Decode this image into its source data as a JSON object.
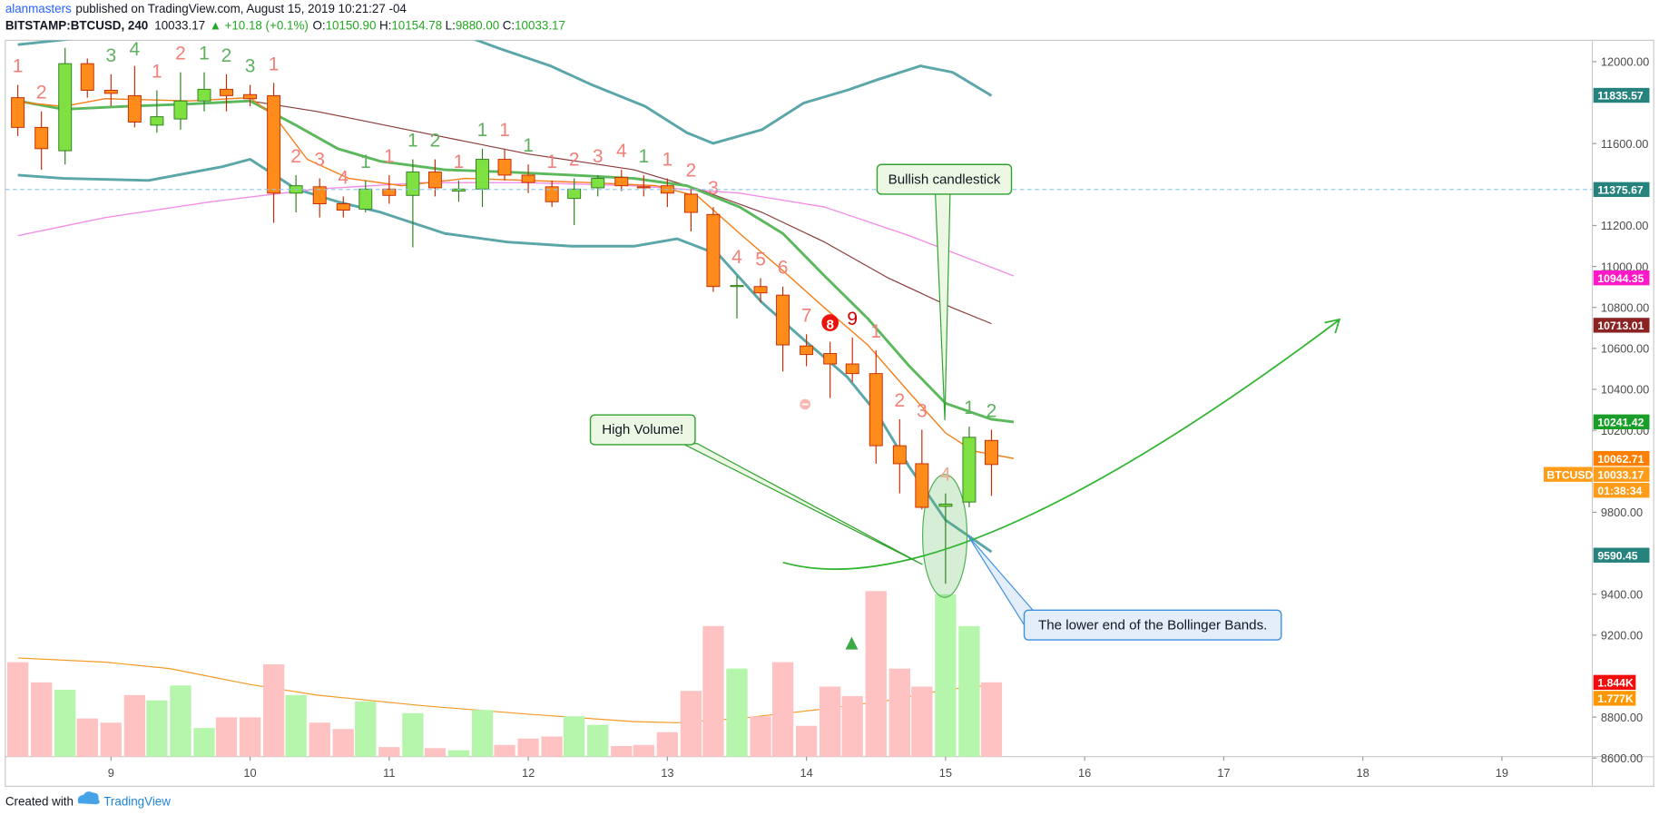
{
  "header": {
    "author": "alanmasters",
    "published": "published on TradingView.com, August 15, 2019 10:21:27 -04",
    "symbol": "BITSTAMP:BTCUSD, 240",
    "last": "10033.17",
    "arrow": "▲",
    "change": "+10.18 (+0.1%)",
    "ohlc": [
      {
        "label": "O:",
        "value": "10150.90"
      },
      {
        "label": "H:",
        "value": "10154.78"
      },
      {
        "label": "L:",
        "value": "9880.00"
      },
      {
        "label": "C:",
        "value": "10033.17"
      }
    ]
  },
  "footer": {
    "created": "Created with",
    "brand": "TradingView"
  },
  "chart_data": {
    "type": "candlestick",
    "xlim": [
      8.24,
      19.65
    ],
    "xticks": [
      9,
      10,
      11,
      12,
      13,
      14,
      15,
      16,
      17,
      18,
      19
    ],
    "ylim": [
      8607,
      12104
    ],
    "yticks": [
      {
        "value": 8600,
        "label": "8600.00"
      },
      {
        "value": 8800,
        "label": "8800.00"
      },
      {
        "value": 9200,
        "label": "9200.00"
      },
      {
        "value": 9400,
        "label": "9400.00"
      },
      {
        "value": 9800,
        "label": "9800.00"
      },
      {
        "value": 10200,
        "label": "10200.00"
      },
      {
        "value": 10400,
        "label": "10400.00"
      },
      {
        "value": 10600,
        "label": "10600.00"
      },
      {
        "value": 10800,
        "label": "10800.00"
      },
      {
        "value": 11000,
        "label": "11000.00"
      },
      {
        "value": 11200,
        "label": "11200.00"
      },
      {
        "value": 11600,
        "label": "11600.00"
      },
      {
        "value": 12000,
        "label": "12000.00"
      }
    ],
    "vlim": [
      0,
      17780
    ],
    "grid": false,
    "up_color": "#7ee041",
    "down_color": "#ff8c1a",
    "up_border": "#2e7d1e",
    "down_border": "#c62a00",
    "volume_up_color": "#b6f5ac",
    "volume_down_color": "#ffc2c2",
    "x": [
      8.33,
      8.5,
      8.67,
      8.83,
      9,
      9.17,
      9.33,
      9.5,
      9.67,
      9.83,
      10,
      10.17,
      10.33,
      10.5,
      10.67,
      10.83,
      11,
      11.17,
      11.33,
      11.5,
      11.67,
      11.83,
      12,
      12.17,
      12.33,
      12.5,
      12.67,
      12.83,
      13,
      13.17,
      13.33,
      13.5,
      13.67,
      13.83,
      14,
      14.17,
      14.33,
      14.5,
      14.67,
      14.83,
      15,
      15.17,
      15.33
    ],
    "open": [
      11824,
      11679,
      11565,
      11990,
      11860,
      11834,
      11690,
      11720,
      11808,
      11865,
      11839,
      11834,
      11358,
      11389,
      11306,
      11280,
      11378,
      11347,
      11461,
      11368,
      11378,
      11523,
      11446,
      11389,
      11332,
      11384,
      11435,
      11389,
      11394,
      11353,
      11254,
      10902,
      10902,
      10860,
      10612,
      10575,
      10524,
      10477,
      10125,
      10037,
      9829,
      9850,
      10150.9
    ],
    "high": [
      11886,
      11757,
      12067,
      12015,
      11938,
      11979,
      11860,
      11948,
      11948,
      11938,
      11886,
      11896,
      11446,
      11430,
      11342,
      11420,
      11446,
      11523,
      11523,
      11420,
      11575,
      11575,
      11498,
      11420,
      11430,
      11446,
      11472,
      11446,
      11430,
      11378,
      11290,
      10954,
      10943,
      10902,
      10669,
      10632,
      10653,
      10591,
      10254,
      10203,
      9892,
      10218,
      10203
    ],
    "low": [
      11637,
      11472,
      11498,
      11824,
      11782,
      11679,
      11653,
      11668,
      11757,
      11757,
      11782,
      11213,
      11264,
      11239,
      11239,
      11264,
      11306,
      11093,
      11342,
      11316,
      11290,
      11420,
      11358,
      11290,
      11202,
      11342,
      11368,
      11342,
      11290,
      11171,
      10876,
      10746,
      10824,
      10487,
      10513,
      10358,
      10436,
      10037,
      9892,
      9814,
      9451,
      9824,
      9880
    ],
    "close": [
      11679,
      11575,
      11990,
      11860,
      11845,
      11705,
      11731,
      11808,
      11865,
      11834,
      11819,
      11358,
      11394,
      11306,
      11275,
      11378,
      11347,
      11461,
      11384,
      11378,
      11523,
      11446,
      11410,
      11316,
      11378,
      11430,
      11394,
      11384,
      11358,
      11264,
      10902,
      10907,
      10871,
      10617,
      10570,
      10524,
      10477,
      10125,
      10037,
      9824,
      9840,
      10166,
      10033.17
    ],
    "volume": [
      2344,
      1844,
      1659,
      948,
      843,
      1528,
      1396,
      1765,
      711,
      975,
      975,
      2292,
      1528,
      843,
      685,
      1370,
      237,
      1080,
      211,
      158,
      1159,
      290,
      448,
      500,
      1001,
      790,
      263,
      290,
      606,
      1633,
      3240,
      2186,
      1001,
      2344,
      764,
      1738,
      1501,
      4109,
      2186,
      1738,
      4030,
      3240,
      1844
    ],
    "td_setup": [
      {
        "text": "1",
        "color": "#f2807a"
      },
      {
        "text": "2",
        "color": "#f2807a"
      },
      null,
      null,
      {
        "text": "3",
        "color": "#5fb05f"
      },
      {
        "text": "4",
        "color": "#5fb05f"
      },
      {
        "text": "1",
        "color": "#f2807a"
      },
      {
        "text": "2",
        "color": "#f2807a"
      },
      {
        "text": "1",
        "color": "#5fb05f"
      },
      {
        "text": "2",
        "color": "#5fb05f"
      },
      {
        "text": "3",
        "color": "#5fb05f"
      },
      {
        "text": "1",
        "color": "#f2807a"
      },
      {
        "text": "2",
        "color": "#f2807a"
      },
      {
        "text": "3",
        "color": "#f2807a"
      },
      {
        "text": "4",
        "color": "#f2807a"
      },
      {
        "text": "1",
        "color": "#5fb05f"
      },
      {
        "text": "1",
        "color": "#f2807a"
      },
      {
        "text": "1",
        "color": "#5fb05f"
      },
      {
        "text": "2",
        "color": "#5fb05f"
      },
      {
        "text": "1",
        "color": "#f2807a"
      },
      {
        "text": "1",
        "color": "#5fb05f"
      },
      {
        "text": "1",
        "color": "#f2807a"
      },
      {
        "text": "1",
        "color": "#5fb05f"
      },
      {
        "text": "1",
        "color": "#f2807a"
      },
      {
        "text": "2",
        "color": "#f2807a"
      },
      {
        "text": "3",
        "color": "#f2807a"
      },
      {
        "text": "4",
        "color": "#f2807a"
      },
      {
        "text": "1",
        "color": "#5fb05f"
      },
      {
        "text": "1",
        "color": "#f2807a"
      },
      {
        "text": "2",
        "color": "#f2807a"
      },
      {
        "text": "3",
        "color": "#f2807a"
      },
      {
        "text": "4",
        "color": "#f2807a"
      },
      {
        "text": "5",
        "color": "#f2807a"
      },
      {
        "text": "6",
        "color": "#f2807a"
      },
      {
        "text": "7",
        "color": "#f2807a"
      },
      {
        "text": "8",
        "color": "#e8140c",
        "circled": true
      },
      {
        "text": "9",
        "color": "#d00000"
      },
      {
        "text": "1",
        "color": "#f2807a"
      },
      {
        "text": "2",
        "color": "#f2807a"
      },
      {
        "text": "3",
        "color": "#f2807a"
      },
      {
        "text": "4",
        "color": "#f0a890"
      },
      {
        "text": "1",
        "color": "#5fb05f"
      },
      {
        "text": "2",
        "color": "#5fb05f"
      }
    ],
    "overlays": [
      {
        "color": "#5aa6a8",
        "width": 2.5,
        "x": [
          8.33,
          9.19,
          10.33,
          11.47,
          11.78,
          12.16,
          12.46,
          12.84,
          13.14,
          13.33,
          13.68,
          13.98,
          14.29,
          14.51,
          14.82,
          15.05,
          15.33
        ],
        "values": [
          12083,
          12145,
          12171,
          12145,
          12067,
          11979,
          11886,
          11782,
          11653,
          11601,
          11668,
          11798,
          11860,
          11912,
          11979,
          11948,
          11834
        ]
      },
      {
        "color": "#5aa6a8",
        "width": 2.5,
        "x": [
          8.33,
          8.66,
          9.27,
          9.8,
          10,
          10.33,
          10.63,
          10.94,
          11.4,
          11.85,
          12.31,
          12.76,
          13.07,
          13.37,
          13.68,
          13.98,
          14.29,
          14.51,
          14.74,
          15,
          15.33
        ],
        "values": [
          11446,
          11430,
          11420,
          11487,
          11523,
          11378,
          11316,
          11264,
          11161,
          11119,
          11099,
          11099,
          11135,
          11057,
          10824,
          10643,
          10462,
          10280,
          10021,
          9762,
          9607
        ]
      },
      {
        "color": "#f48fe8",
        "width": 1.2,
        "x": [
          8.33,
          8.96,
          9.72,
          10.48,
          11.24,
          12,
          12.76,
          13.52,
          14.13,
          14.74,
          15.49
        ],
        "values": [
          11150,
          11239,
          11316,
          11378,
          11409,
          11409,
          11394,
          11358,
          11290,
          11150,
          10954
        ]
      },
      {
        "color": "#8b3a3a",
        "width": 1,
        "x": [
          10,
          10.48,
          11.24,
          12,
          12.76,
          13.22,
          13.68,
          14.13,
          14.59,
          15.05,
          15.33
        ],
        "values": [
          11808,
          11757,
          11653,
          11549,
          11472,
          11378,
          11264,
          11119,
          10943,
          10798,
          10721
        ]
      },
      {
        "color": "#5cb85c",
        "width": 2.5,
        "x": [
          8.33,
          8.66,
          9.11,
          9.57,
          10,
          10.33,
          10.63,
          10.94,
          11.4,
          11.85,
          12.31,
          12.76,
          13.14,
          13.52,
          13.83,
          14.13,
          14.44,
          14.74,
          15,
          15.33,
          15.49
        ],
        "values": [
          11808,
          11767,
          11782,
          11793,
          11808,
          11689,
          11575,
          11513,
          11472,
          11461,
          11446,
          11430,
          11394,
          11290,
          11161,
          10954,
          10746,
          10513,
          10332,
          10254,
          10241
        ]
      },
      {
        "color": "#f57f17",
        "width": 1.2,
        "x": [
          8.33,
          8.66,
          8.96,
          9.57,
          10,
          10.18,
          10.41,
          10.71,
          11.09,
          11.55,
          12,
          12.46,
          12.92,
          13.22,
          13.52,
          13.83,
          14.13,
          14.44,
          14.74,
          15,
          15.2,
          15.49
        ],
        "values": [
          11803,
          11782,
          11819,
          11808,
          11824,
          11731,
          11523,
          11430,
          11394,
          11430,
          11420,
          11409,
          11394,
          11342,
          11161,
          10980,
          10798,
          10617,
          10384,
          10187,
          10099,
          10063
        ]
      }
    ],
    "volume_ma": {
      "color": "#f59a23",
      "x": [
        8.33,
        8.96,
        9.42,
        10,
        10.48,
        11.24,
        12,
        12.76,
        13.07,
        13.52,
        14.13,
        14.59,
        15,
        15.33
      ],
      "values": [
        2450,
        2344,
        2186,
        1791,
        1528,
        1264,
        1054,
        869,
        843,
        948,
        1185,
        1396,
        1659,
        1777
      ]
    },
    "price_labels": [
      {
        "value": 11835.57,
        "color": "#26827c"
      },
      {
        "value": 11375.67,
        "color": "#26827c",
        "dashed": true
      },
      {
        "value": 10944.35,
        "color": "#ff19c8"
      },
      {
        "value": 10713.01,
        "color": "#8b2323"
      },
      {
        "value": 10241.42,
        "color": "#1a9e2a"
      },
      {
        "value": 10062.71,
        "color": "#ff8000"
      },
      {
        "value": 10033.17,
        "color": "#ff9d1a",
        "symbol": "BTCUSD",
        "countdown": "01:38:34"
      },
      {
        "value": 9590.45,
        "color": "#26827c"
      }
    ],
    "volume_labels": [
      {
        "value": 1844,
        "label": "1.844K",
        "color": "#f20c0c"
      },
      {
        "value": 1777,
        "label": "1.777K",
        "color": "#ff9800"
      }
    ],
    "annotations": [
      "Bullish candlestick",
      "High Volume!",
      "The lower end of the Bollinger Bands."
    ]
  }
}
